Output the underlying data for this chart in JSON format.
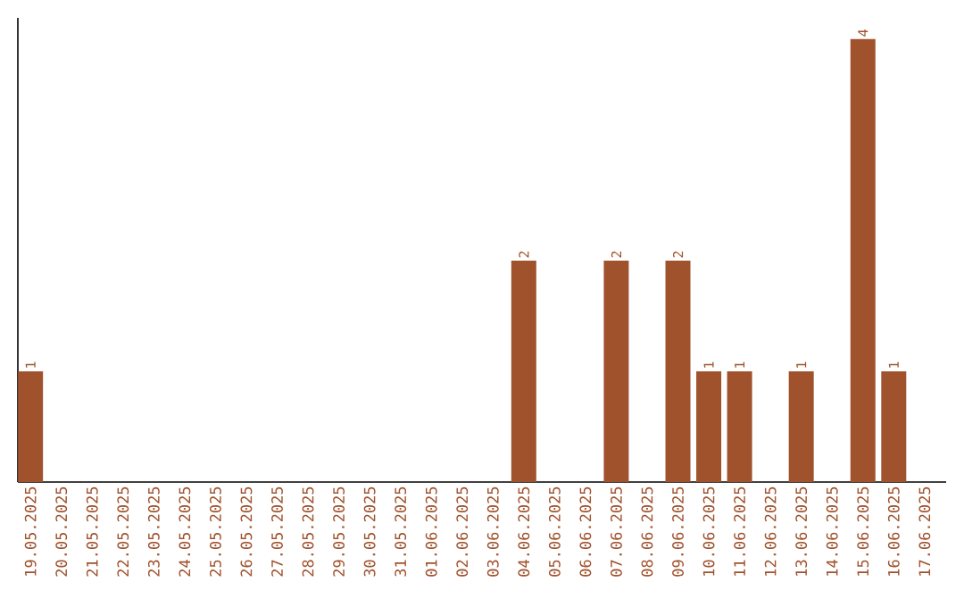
{
  "chart_data": {
    "type": "bar",
    "categories": [
      "19.05.2025",
      "20.05.2025",
      "21.05.2025",
      "22.05.2025",
      "23.05.2025",
      "24.05.2025",
      "25.05.2025",
      "26.05.2025",
      "27.05.2025",
      "28.05.2025",
      "29.05.2025",
      "30.05.2025",
      "31.05.2025",
      "01.06.2025",
      "02.06.2025",
      "03.06.2025",
      "04.06.2025",
      "05.06.2025",
      "06.06.2025",
      "07.06.2025",
      "08.06.2025",
      "09.06.2025",
      "10.06.2025",
      "11.06.2025",
      "12.06.2025",
      "13.06.2025",
      "14.06.2025",
      "15.06.2025",
      "16.06.2025",
      "17.06.2025"
    ],
    "values": [
      1,
      0,
      0,
      0,
      0,
      0,
      0,
      0,
      0,
      0,
      0,
      0,
      0,
      0,
      0,
      0,
      2,
      0,
      0,
      2,
      0,
      2,
      1,
      1,
      0,
      1,
      0,
      4,
      1,
      0
    ],
    "value_labels": [
      "1",
      null,
      null,
      null,
      null,
      null,
      null,
      null,
      null,
      null,
      null,
      null,
      null,
      null,
      null,
      null,
      "2",
      null,
      null,
      "2",
      null,
      "2",
      "1",
      "1",
      null,
      "1",
      null,
      "4",
      "1",
      null
    ],
    "color": "#a0522d",
    "tick_labels": "x",
    "grid": false
  }
}
